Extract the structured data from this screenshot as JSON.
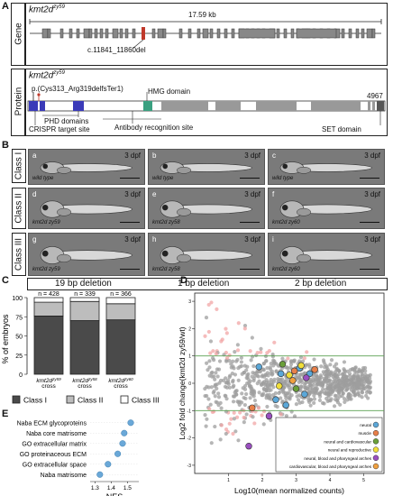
{
  "panels": {
    "A": "A",
    "B": "B",
    "C": "C",
    "D": "D",
    "E": "E"
  },
  "panelA": {
    "gene_label": "Gene",
    "protein_label": "Protein",
    "gene_title": "kmt2d",
    "gene_title_sup": "zy59",
    "scale": "17.59 kb",
    "deletion": "c.11841_11860del",
    "protein_title": "kmt2d",
    "protein_title_sup": "zy59",
    "mutation": "p.(Cys313_Arg319delfsTer1)",
    "hmg": "HMG domain",
    "phd": "PHD domains",
    "crispr": "CRISPR target site",
    "antibody": "Antibody recognition site",
    "length": "4967",
    "set": "SET domain"
  },
  "panelB": {
    "classes": [
      "Class I",
      "Class II",
      "Class III"
    ],
    "dpf": "3 dpf",
    "tiles": [
      {
        "letter": "a",
        "geno": "wild type"
      },
      {
        "letter": "b",
        "geno": "wild type"
      },
      {
        "letter": "c",
        "geno": "wild type"
      },
      {
        "letter": "d",
        "geno": "kmt2d zy59"
      },
      {
        "letter": "e",
        "geno": "kmt2d zy58"
      },
      {
        "letter": "f",
        "geno": "kmt2d zy60"
      },
      {
        "letter": "g",
        "geno": "kmt2d zy59"
      },
      {
        "letter": "h",
        "geno": "kmt2d zy58"
      },
      {
        "letter": "i",
        "geno": "kmt2d zy60"
      }
    ],
    "deletions": [
      "19 bp deletion",
      "1 bp deletion",
      "2 bp deletion"
    ]
  },
  "chart_data": [
    {
      "type": "bar",
      "panel": "C",
      "ylabel": "% of embryos",
      "ylim": [
        0,
        100
      ],
      "yticks": [
        0,
        25,
        50,
        75,
        100
      ],
      "categories": [
        "kmt2d zy59 cross",
        "kmt2d zy58 cross",
        "kmt2d zy60 cross"
      ],
      "n_labels": [
        "n = 428",
        "n = 339",
        "n = 366"
      ],
      "series": [
        {
          "name": "Class I",
          "color": "#4a4a4a",
          "values": [
            76,
            70,
            71
          ]
        },
        {
          "name": "Class II",
          "color": "#bdbdbd",
          "values": [
            18,
            25,
            21
          ]
        },
        {
          "name": "Class III",
          "color": "#ffffff",
          "values": [
            6,
            5,
            8
          ]
        }
      ]
    },
    {
      "type": "scatter",
      "panel": "D",
      "xlabel": "Log10(mean normalized counts)",
      "ylabel": "Log2 fold change(kmt2d zy59/wt)",
      "xticks": [
        1,
        2,
        3,
        4,
        5
      ],
      "yticks": [
        -3,
        -2,
        -1,
        0,
        1,
        2,
        3
      ],
      "xlim": [
        0,
        5.6
      ],
      "ylim": [
        -3.3,
        3.3
      ],
      "thresholds": [
        -1,
        1
      ],
      "legend": [
        {
          "label": "neural",
          "color": "#5ba7d8"
        },
        {
          "label": "muscle",
          "color": "#e8804a"
        },
        {
          "label": "neural and cardiovascular",
          "color": "#6a9f3a"
        },
        {
          "label": "neural and reproductive",
          "color": "#f0de3a"
        },
        {
          "label": "neural, blood and pharyngeal arches",
          "color": "#9a4fc0"
        },
        {
          "label": "cardiovascular, blood and pharyngeal arches",
          "color": "#f0a040"
        }
      ],
      "highlights": [
        {
          "x": 2.4,
          "y": -0.6,
          "g": 0
        },
        {
          "x": 2.55,
          "y": 0.35,
          "g": 0
        },
        {
          "x": 3.1,
          "y": 0.55,
          "g": 0
        },
        {
          "x": 3.4,
          "y": 0.35,
          "g": 0
        },
        {
          "x": 2.7,
          "y": -0.8,
          "g": 0
        },
        {
          "x": 1.9,
          "y": 0.6,
          "g": 0
        },
        {
          "x": 3.25,
          "y": -0.4,
          "g": 0
        },
        {
          "x": 2.95,
          "y": 0.45,
          "g": 1
        },
        {
          "x": 1.7,
          "y": -0.9,
          "g": 1
        },
        {
          "x": 3.55,
          "y": 0.5,
          "g": 1
        },
        {
          "x": 2.6,
          "y": 0.7,
          "g": 2
        },
        {
          "x": 3.0,
          "y": -0.2,
          "g": 2
        },
        {
          "x": 2.8,
          "y": 0.3,
          "g": 3
        },
        {
          "x": 3.15,
          "y": 0.65,
          "g": 3
        },
        {
          "x": 2.5,
          "y": -0.1,
          "g": 3
        },
        {
          "x": 2.2,
          "y": -1.2,
          "g": 4
        },
        {
          "x": 1.6,
          "y": -2.3,
          "g": 4
        },
        {
          "x": 3.3,
          "y": 0.2,
          "g": 4
        },
        {
          "x": 2.9,
          "y": 0.1,
          "g": 5
        }
      ]
    },
    {
      "type": "scatter",
      "panel": "E",
      "xlabel": "NES",
      "xticks": [
        1.3,
        1.4,
        1.5
      ],
      "xlim": [
        1.27,
        1.57
      ],
      "categories": [
        "Naba ECM glycoproteins",
        "Naba core matrisome",
        "GO extracellular matrix",
        "GO proteinaceous ECM",
        "GO extracellular space",
        "Naba matrisome"
      ],
      "values": [
        1.52,
        1.48,
        1.47,
        1.44,
        1.38,
        1.33
      ],
      "color": "#6aa8d8"
    }
  ]
}
